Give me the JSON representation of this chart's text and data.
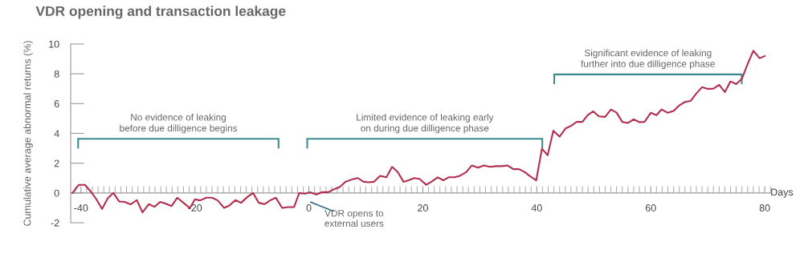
{
  "chart_data": {
    "type": "line",
    "title": "VDR opening and transaction leakage",
    "xlabel": "Days",
    "ylabel": "Cumulative average abnormal returns (%)",
    "series": [
      {
        "color": "#b32d4e",
        "x": [
          -41.5,
          -40.4,
          -39.3,
          -38.3,
          -37.4,
          -36.3,
          -35.3,
          -34.3,
          -33.3,
          -32.3,
          -31.3,
          -30.2,
          -29.2,
          -28.1,
          -27.1,
          -26.1,
          -25.1,
          -24.1,
          -23.1,
          -22.0,
          -20.9,
          -20.0,
          -19.1,
          -18.0,
          -17.0,
          -16.0,
          -14.9,
          -14.0,
          -12.9,
          -11.9,
          -10.8,
          -9.8,
          -8.8,
          -7.8,
          -6.8,
          -5.8,
          -4.7,
          -3.6,
          -2.6,
          -1.7,
          -0.7,
          0.2,
          1.3,
          2.3,
          3.4,
          4.4,
          5.4,
          6.4,
          7.5,
          8.6,
          9.6,
          10.5,
          11.4,
          12.5,
          13.6,
          14.6,
          15.6,
          16.6,
          17.5,
          18.5,
          19.4,
          20.6,
          21.5,
          22.6,
          23.6,
          24.5,
          25.5,
          26.5,
          27.6,
          28.6,
          29.7,
          30.7,
          31.8,
          32.9,
          33.9,
          34.8,
          35.9,
          36.9,
          37.9,
          38.9,
          39.9,
          40.9,
          41.9,
          42.9,
          44.0,
          45.0,
          46.0,
          47.0,
          48.0,
          48.9,
          49.9,
          50.9,
          52.0,
          53.0,
          54.0,
          55.0,
          56.0,
          57.0,
          58.0,
          58.9,
          60.0,
          61.0,
          61.9,
          63.0,
          64.0,
          65.0,
          66.0,
          67.0,
          68.0,
          69.0,
          70.0,
          71.0,
          72.0,
          73.0,
          74.0,
          75.0,
          76.0,
          77.0,
          78.0,
          79.1,
          80.0
        ],
        "values": [
          0,
          0.54,
          0.54,
          0.1,
          -0.36,
          -1.07,
          -0.36,
          0,
          -0.57,
          -0.6,
          -0.77,
          -0.48,
          -1.3,
          -0.75,
          -0.93,
          -0.6,
          -0.72,
          -0.88,
          -0.32,
          -0.66,
          -1.02,
          -0.43,
          -0.5,
          -0.32,
          -0.32,
          -0.5,
          -1.0,
          -0.86,
          -0.48,
          -0.66,
          -0.27,
          0,
          -0.66,
          -0.75,
          -0.5,
          -0.32,
          -1.0,
          -0.95,
          -0.95,
          0,
          -0.05,
          0.05,
          -0.1,
          0.05,
          0.05,
          0.25,
          0.4,
          0.75,
          0.9,
          1.0,
          0.75,
          0.72,
          0.75,
          1.15,
          1.05,
          1.75,
          1.4,
          0.75,
          0.85,
          1.0,
          0.95,
          0.55,
          0.75,
          1.05,
          0.85,
          1.05,
          1.05,
          1.15,
          1.4,
          1.85,
          1.7,
          1.85,
          1.75,
          1.8,
          1.8,
          1.85,
          1.6,
          1.6,
          1.4,
          1.1,
          0.85,
          2.97,
          2.53,
          4.18,
          3.78,
          4.32,
          4.5,
          4.78,
          4.77,
          5.22,
          5.48,
          5.14,
          5.11,
          5.61,
          5.39,
          4.77,
          4.7,
          4.95,
          4.75,
          4.77,
          5.38,
          5.22,
          5.61,
          5.38,
          5.5,
          5.88,
          6.11,
          6.18,
          6.68,
          7.1,
          6.99,
          7.0,
          7.26,
          6.77,
          7.49,
          7.31,
          7.67,
          8.66,
          9.55,
          9.05,
          9.19
        ]
      }
    ],
    "xlim": [
      -41.8,
      81
    ],
    "xticks": [
      -40,
      -20,
      0,
      20,
      40,
      60,
      80
    ],
    "ylim": [
      -2,
      10
    ],
    "yticks": [
      -2,
      0,
      2,
      4,
      6,
      8,
      10
    ],
    "grid": false,
    "marker": "none",
    "line_style": "solid",
    "annotations": [
      "No evidence of leaking\nbefore due dilligence begins",
      "Limited evidence of leaking early\non during due dilligence phase",
      "Significant evidence of leaking\nfurther into due dilligence phase",
      "VDR opens to\nexternal users"
    ]
  }
}
